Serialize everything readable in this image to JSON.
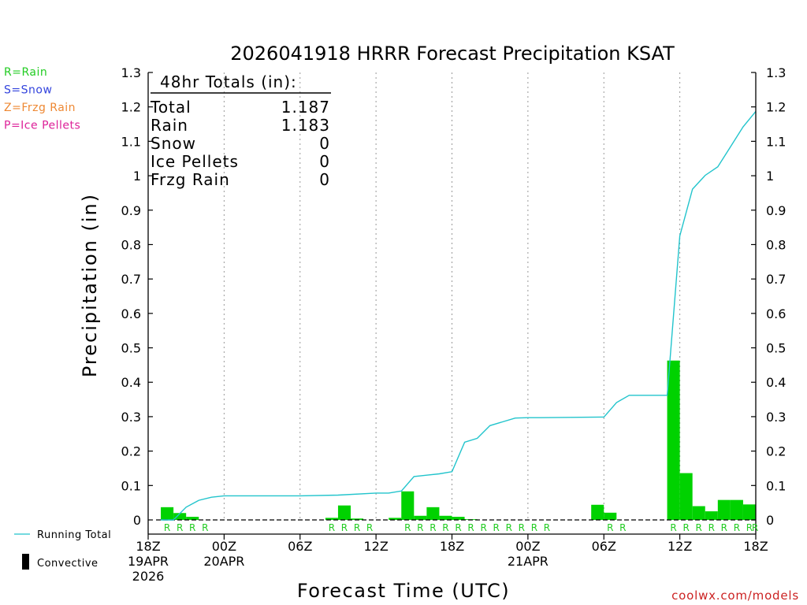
{
  "chart_data": {
    "type": "bar",
    "title": "2026041918 HRRR Forecast Precipitation KSAT",
    "ylabel": "Precipitation (in)",
    "xlabel": "Forecast Time (UTC)",
    "ylim": [
      0,
      1.3
    ],
    "xlim": [
      0,
      48
    ],
    "yticks": [
      0,
      0.1,
      0.2,
      0.3,
      0.4,
      0.5,
      0.6,
      0.7,
      0.8,
      0.9,
      1,
      1.1,
      1.2,
      1.3
    ],
    "ytick_labels": [
      "0",
      "0.1",
      "0.2",
      "0.3",
      "0.4",
      "0.5",
      "0.6",
      "0.7",
      "0.8",
      "0.9",
      "1",
      "1.1",
      "1.2",
      "1.3"
    ],
    "xticks": [
      {
        "x": 0,
        "lines": [
          "18Z",
          "19APR",
          "2026"
        ]
      },
      {
        "x": 6,
        "lines": [
          "00Z",
          "20APR"
        ]
      },
      {
        "x": 12,
        "lines": [
          "06Z"
        ]
      },
      {
        "x": 18,
        "lines": [
          "12Z"
        ]
      },
      {
        "x": 24,
        "lines": [
          "18Z"
        ]
      },
      {
        "x": 30,
        "lines": [
          "00Z",
          "21APR"
        ]
      },
      {
        "x": 36,
        "lines": [
          "06Z"
        ]
      },
      {
        "x": 42,
        "lines": [
          "12Z"
        ]
      },
      {
        "x": 48,
        "lines": [
          "18Z"
        ]
      }
    ],
    "hourly_precip": {
      "name": "Hourly Precipitation",
      "hours": [
        2,
        3,
        4,
        15,
        16,
        17,
        20,
        21,
        22,
        23,
        24,
        25,
        26,
        36,
        37,
        42,
        43,
        44,
        45,
        46,
        47,
        48
      ],
      "values": [
        0.037,
        0.02,
        0.009,
        0.006,
        0.042,
        0.004,
        0.006,
        0.083,
        0.012,
        0.037,
        0.012,
        0.009,
        0.002,
        0.044,
        0.021,
        0.463,
        0.136,
        0.04,
        0.025,
        0.058,
        0.058,
        0.045
      ]
    },
    "running_total": {
      "name": "Running Total",
      "x": [
        1,
        2,
        3,
        4,
        5,
        6,
        12,
        15,
        18,
        19,
        20,
        21,
        22,
        23,
        24,
        25,
        26,
        27,
        29,
        30,
        31,
        36,
        37,
        38,
        40,
        41,
        42,
        43,
        44,
        45,
        46,
        47,
        48
      ],
      "y": [
        0,
        0,
        0.037,
        0.057,
        0.066,
        0.07,
        0.07,
        0.072,
        0.078,
        0.078,
        0.084,
        0.126,
        0.13,
        0.134,
        0.14,
        0.226,
        0.237,
        0.274,
        0.296,
        0.297,
        0.297,
        0.299,
        0.341,
        0.362,
        0.362,
        0.362,
        0.825,
        0.961,
        1.001,
        1.026,
        1.084,
        1.142,
        1.187
      ]
    },
    "precip_type_markers": {
      "label": "R",
      "hours": [
        2,
        3,
        4,
        5,
        15,
        16,
        17,
        18,
        21,
        22,
        23,
        24,
        25,
        26,
        27,
        28,
        29,
        30,
        31,
        32,
        37,
        38,
        42,
        43,
        44,
        45,
        46,
        47,
        48,
        48.9
      ]
    },
    "totals_box": {
      "heading": "48hr Totals (in):",
      "rows": [
        {
          "label": "Total",
          "value": "1.187"
        },
        {
          "label": "Rain",
          "value": "1.183"
        },
        {
          "label": "Snow",
          "value": "0"
        },
        {
          "label": "Ice Pellets",
          "value": "0"
        },
        {
          "label": "Frzg Rain",
          "value": "0"
        }
      ]
    },
    "type_legend": [
      {
        "text": "R=Rain",
        "color": "#22cc22"
      },
      {
        "text": "S=Snow",
        "color": "#3344dd"
      },
      {
        "text": "Z=Frzg Rain",
        "color": "#ee8833"
      },
      {
        "text": "P=Ice Pellets",
        "color": "#dd2299"
      }
    ],
    "series_legend": [
      {
        "text": "Running Total",
        "color": "#22c4cc"
      },
      {
        "text": "Convective",
        "color": "#000000"
      }
    ],
    "credit": "coolwx.com/models",
    "colors": {
      "bar": "#00d200",
      "line": "#22c4cc",
      "r_marker": "#22cc22",
      "credit": "#cc2222",
      "axis": "#000000",
      "grid": "#999999"
    },
    "grid": true
  }
}
